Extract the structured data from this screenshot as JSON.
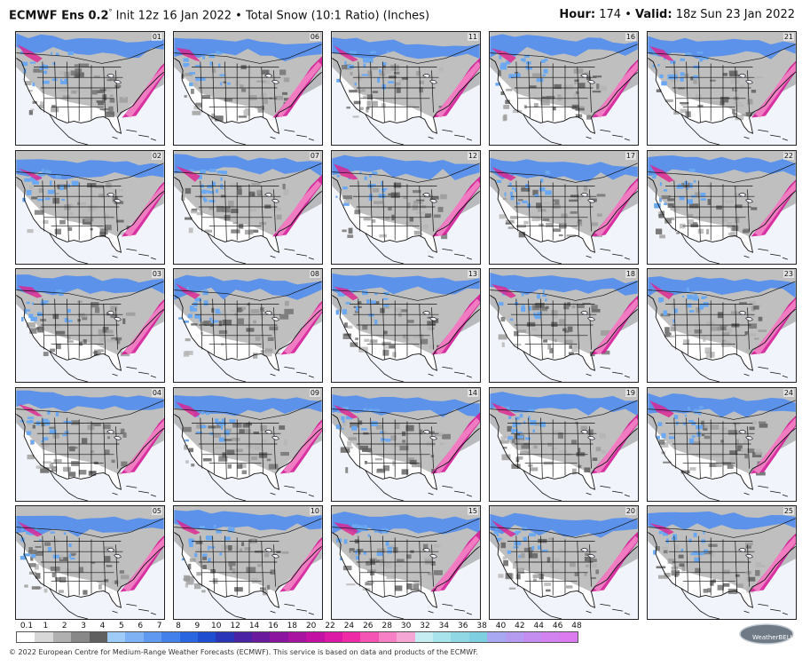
{
  "header": {
    "model": "ECMWF Ens 0.2",
    "degree": "°",
    "init": "Init 12z 16 Jan 2022",
    "bullet": "•",
    "product": "Total Snow (10:1 Ratio) (Inches)",
    "hour_label": "Hour:",
    "hour_value": "174",
    "valid_label": "Valid:",
    "valid_value": "18z Sun 23 Jan 2022"
  },
  "members": [
    [
      "01",
      "06",
      "11",
      "16",
      "21"
    ],
    [
      "02",
      "07",
      "12",
      "17",
      "22"
    ],
    [
      "03",
      "08",
      "13",
      "18",
      "23"
    ],
    [
      "04",
      "09",
      "14",
      "19",
      "24"
    ],
    [
      "05",
      "10",
      "15",
      "20",
      "25"
    ]
  ],
  "colorbar": {
    "labels": [
      "0.1",
      "1",
      "2",
      "3",
      "4",
      "5",
      "6",
      "7",
      "8",
      "9",
      "10",
      "12",
      "14",
      "16",
      "18",
      "20",
      "22",
      "24",
      "26",
      "28",
      "30",
      "32",
      "34",
      "36",
      "38",
      "40",
      "42",
      "44",
      "46",
      "48"
    ],
    "colors": [
      "#ffffff",
      "#d8d8d8",
      "#b0b0b0",
      "#888888",
      "#606060",
      "#9ecbf7",
      "#7fb2f5",
      "#5f99f0",
      "#4380ea",
      "#2a66e0",
      "#1f4fd0",
      "#2a35b8",
      "#4a23a4",
      "#6a1a9c",
      "#8b159e",
      "#a8139f",
      "#c312a3",
      "#dc18a6",
      "#ef2aa7",
      "#f554b4",
      "#f77fc6",
      "#f6a6d4",
      "#c6eef2",
      "#a8e4ec",
      "#8fd8e4",
      "#7ecfe0",
      "#a8a8f2",
      "#b69cf0",
      "#c48ef0",
      "#d283f0",
      "#dc7af0"
    ]
  },
  "footer": "© 2022 European Centre for Medium-Range Weather Forecasts (ECMWF). This service is based on data and products of the ECMWF.",
  "logo": "WeatherBELL",
  "colors": {
    "snow_light_blue": "#6aa9f2",
    "snow_blue": "#2a66e0",
    "snow_purple": "#6a1a9c",
    "snow_magenta": "#e0208f",
    "snow_pink": "#f58ac8",
    "trace_gray": "#7a7a7a",
    "ocean": "#f2f4fb"
  }
}
